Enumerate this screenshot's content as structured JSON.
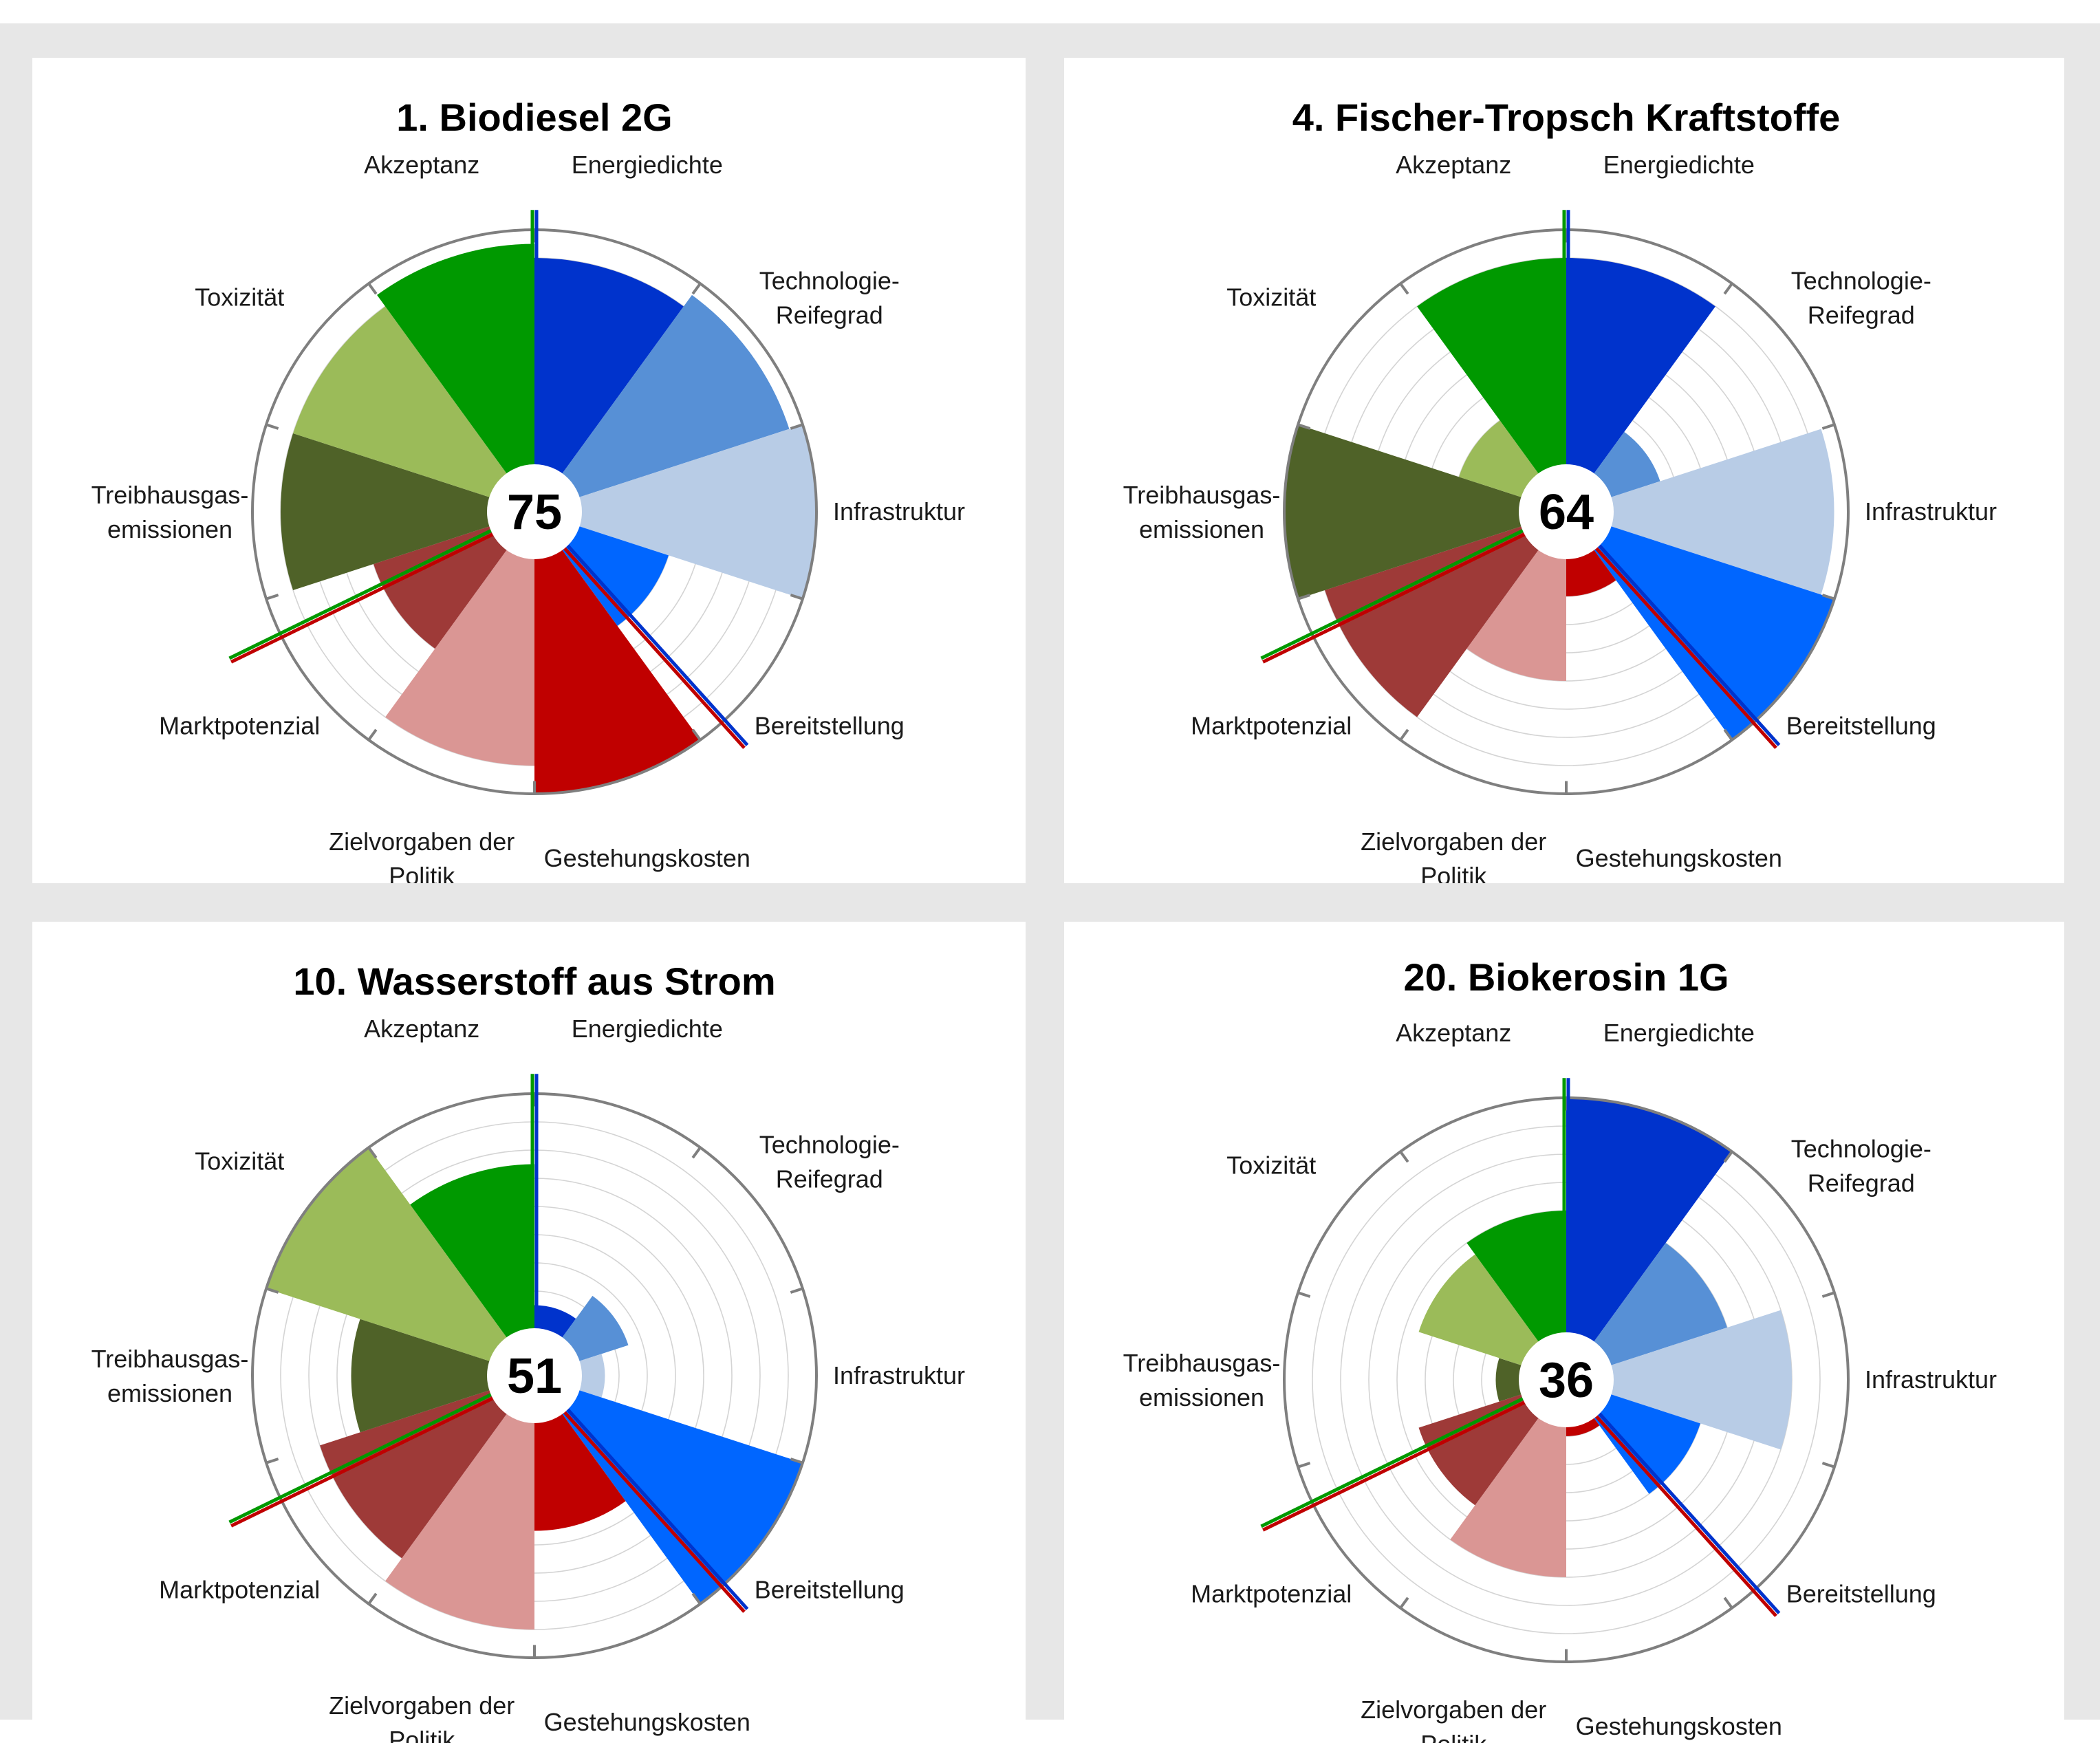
{
  "chart_data": [
    {
      "type": "polar-area",
      "title": "1. Biodiesel 2G",
      "score": "75",
      "rmax": 10,
      "categories": [
        "Energiedichte",
        "Technologie-\nReifegrad",
        "Infrastruktur",
        "Bereitstellung",
        "Gestehungskosten",
        "Zielvorgaben der\nPolitik",
        "Marktpotenzial",
        "Treibhausgas-\nemissionen",
        "Toxizität",
        "Akzeptanz"
      ],
      "values": [
        9,
        9.5,
        10,
        5,
        10,
        9,
        6,
        9,
        9,
        9.5
      ],
      "colors": [
        "#0033cc",
        "#5790d6",
        "#b8cce6",
        "#0066ff",
        "#c00000",
        "#da9694",
        "#9e3a38",
        "#4f6228",
        "#9bbb59",
        "#009900"
      ]
    },
    {
      "type": "polar-area",
      "title": "4. Fischer-Tropsch Kraftstoffe",
      "score": "64",
      "rmax": 10,
      "categories": [
        "Energiedichte",
        "Technologie-\nReifegrad",
        "Infrastruktur",
        "Bereitstellung",
        "Gestehungskosten",
        "Zielvorgaben der\nPolitik",
        "Marktpotenzial",
        "Treibhausgas-\nemissionen",
        "Toxizität",
        "Akzeptanz"
      ],
      "values": [
        9,
        3.5,
        9.5,
        10,
        3,
        6,
        9,
        10,
        4,
        9
      ],
      "colors": [
        "#0033cc",
        "#5790d6",
        "#b8cce6",
        "#0066ff",
        "#c00000",
        "#da9694",
        "#9e3a38",
        "#4f6228",
        "#9bbb59",
        "#009900"
      ]
    },
    {
      "type": "polar-area",
      "title": "10. Wasserstoff aus Strom",
      "score": "51",
      "rmax": 10,
      "categories": [
        "Energiedichte",
        "Technologie-\nReifegrad",
        "Infrastruktur",
        "Bereitstellung",
        "Gestehungskosten",
        "Zielvorgaben der\nPolitik",
        "Marktpotenzial",
        "Treibhausgas-\nemissionen",
        "Toxizität",
        "Akzeptanz"
      ],
      "values": [
        2.5,
        3.5,
        2.5,
        10,
        5.5,
        9,
        8,
        6.5,
        10,
        7.5
      ],
      "colors": [
        "#0033cc",
        "#5790d6",
        "#b8cce6",
        "#0066ff",
        "#c00000",
        "#da9694",
        "#9e3a38",
        "#4f6228",
        "#9bbb59",
        "#009900"
      ]
    },
    {
      "type": "polar-area",
      "title": "20. Biokerosin 1G",
      "score": "36",
      "rmax": 10,
      "categories": [
        "Energiedichte",
        "Technologie-\nReifegrad",
        "Infrastruktur",
        "Bereitstellung",
        "Gestehungskosten",
        "Zielvorgaben der\nPolitik",
        "Marktpotenzial",
        "Treibhausgas-\nemissionen",
        "Toxizität",
        "Akzeptanz"
      ],
      "values": [
        10,
        6,
        8,
        5,
        2,
        7,
        5.5,
        2.5,
        5.5,
        6
      ],
      "colors": [
        "#0033cc",
        "#5790d6",
        "#b8cce6",
        "#0066ff",
        "#c00000",
        "#da9694",
        "#9e3a38",
        "#4f6228",
        "#9bbb59",
        "#009900"
      ]
    }
  ]
}
